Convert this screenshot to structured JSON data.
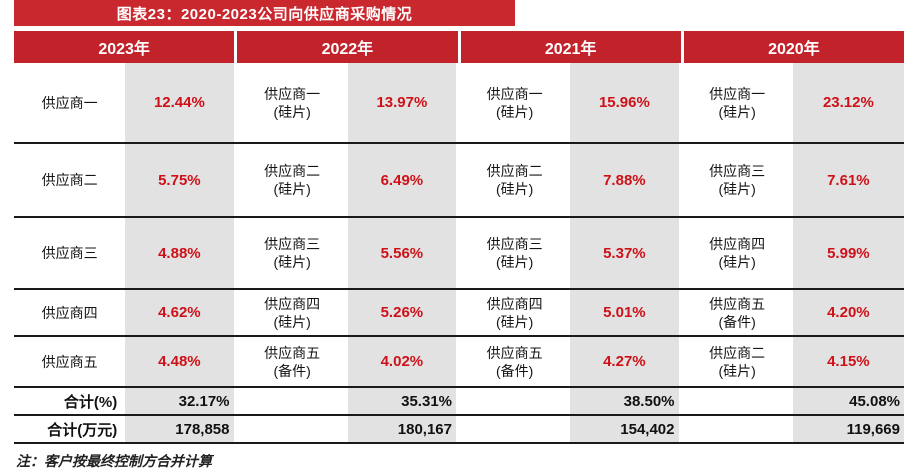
{
  "title": "图表23：2020-2023公司向供应商采购情况",
  "note": "注：客户按最终控制方合并计算",
  "colors": {
    "title_bar": "#C9282E",
    "table_header": "#C2232B",
    "value_text": "#CE1118",
    "cell_gray": "#E2E2E2",
    "line": "#1A1A1A"
  },
  "summary_labels": {
    "pct": "合计(%)",
    "amount": "合计(万元)"
  },
  "chart_data": {
    "type": "table",
    "title": "图表23：2020-2023公司向供应商采购情况",
    "note": "注：客户按最终控制方合并计算",
    "year_groups": [
      {
        "year": "2023年",
        "rows": [
          {
            "name": "供应商一",
            "value": "12.44%"
          },
          {
            "name": "供应商二",
            "value": "5.75%"
          },
          {
            "name": "供应商三",
            "value": "4.88%"
          },
          {
            "name": "供应商四",
            "value": "4.62%"
          },
          {
            "name": "供应商五",
            "value": "4.48%"
          }
        ],
        "total_pct": "32.17%",
        "total_amount": "178,858"
      },
      {
        "year": "2022年",
        "rows": [
          {
            "name": "供应商一",
            "sub": "(硅片)",
            "value": "13.97%"
          },
          {
            "name": "供应商二",
            "sub": "(硅片)",
            "value": "6.49%"
          },
          {
            "name": "供应商三",
            "sub": "(硅片)",
            "value": "5.56%"
          },
          {
            "name": "供应商四",
            "sub": "(硅片)",
            "value": "5.26%"
          },
          {
            "name": "供应商五",
            "sub": "(备件)",
            "value": "4.02%"
          }
        ],
        "total_pct": "35.31%",
        "total_amount": "180,167"
      },
      {
        "year": "2021年",
        "rows": [
          {
            "name": "供应商一",
            "sub": "(硅片)",
            "value": "15.96%"
          },
          {
            "name": "供应商二",
            "sub": "(硅片)",
            "value": "7.88%"
          },
          {
            "name": "供应商三",
            "sub": "(硅片)",
            "value": "5.37%"
          },
          {
            "name": "供应商四",
            "sub": "(硅片)",
            "value": "5.01%"
          },
          {
            "name": "供应商五",
            "sub": "(备件)",
            "value": "4.27%"
          }
        ],
        "total_pct": "38.50%",
        "total_amount": "154,402"
      },
      {
        "year": "2020年",
        "rows": [
          {
            "name": "供应商一",
            "sub": "(硅片)",
            "value": "23.12%"
          },
          {
            "name": "供应商三",
            "sub": "(硅片)",
            "value": "7.61%"
          },
          {
            "name": "供应商四",
            "sub": "(硅片)",
            "value": "5.99%"
          },
          {
            "name": "供应商五",
            "sub": "(备件)",
            "value": "4.20%"
          },
          {
            "name": "供应商二",
            "sub": "(硅片)",
            "value": "4.15%"
          }
        ],
        "total_pct": "45.08%",
        "total_amount": "119,669"
      }
    ]
  }
}
